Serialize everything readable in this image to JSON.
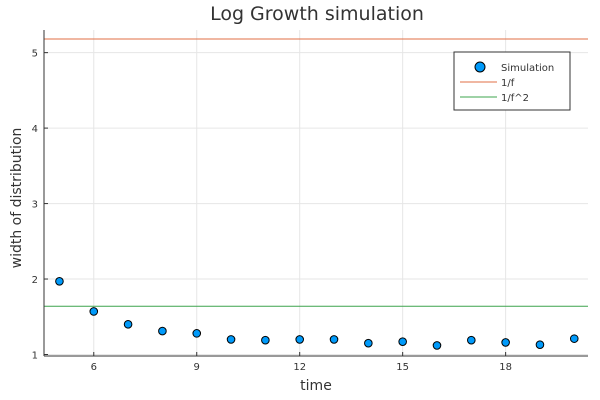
{
  "chart_data": {
    "type": "scatter",
    "title": "Log Growth simulation",
    "xlabel": "time",
    "ylabel": "width of distribution",
    "xlim": [
      4.55,
      20.4
    ],
    "ylim": [
      0.98,
      5.3
    ],
    "xticks": [
      6,
      9,
      12,
      15,
      18
    ],
    "xtick_labels": [
      "6",
      "9",
      "12",
      "15",
      "18"
    ],
    "yticks": [
      1,
      2,
      3,
      4,
      5
    ],
    "ytick_labels": [
      "1",
      "2",
      "3",
      "4",
      "5"
    ],
    "grid": true,
    "legend_position": "top-right",
    "series": [
      {
        "name": "Simulation",
        "kind": "scatter",
        "color": "#009AFA",
        "x": [
          5,
          6,
          7,
          8,
          9,
          10,
          11,
          12,
          13,
          14,
          15,
          16,
          17,
          18,
          19,
          20
        ],
        "y": [
          1.97,
          1.57,
          1.4,
          1.31,
          1.28,
          1.2,
          1.19,
          1.2,
          1.2,
          1.15,
          1.17,
          1.12,
          1.19,
          1.16,
          1.13,
          1.21
        ]
      },
      {
        "name": "1/f",
        "kind": "hline",
        "color": "#E26F46",
        "y": 5.18
      },
      {
        "name": "1/f^2",
        "kind": "hline",
        "color": "#3DA44D",
        "y": 1.64
      }
    ]
  }
}
